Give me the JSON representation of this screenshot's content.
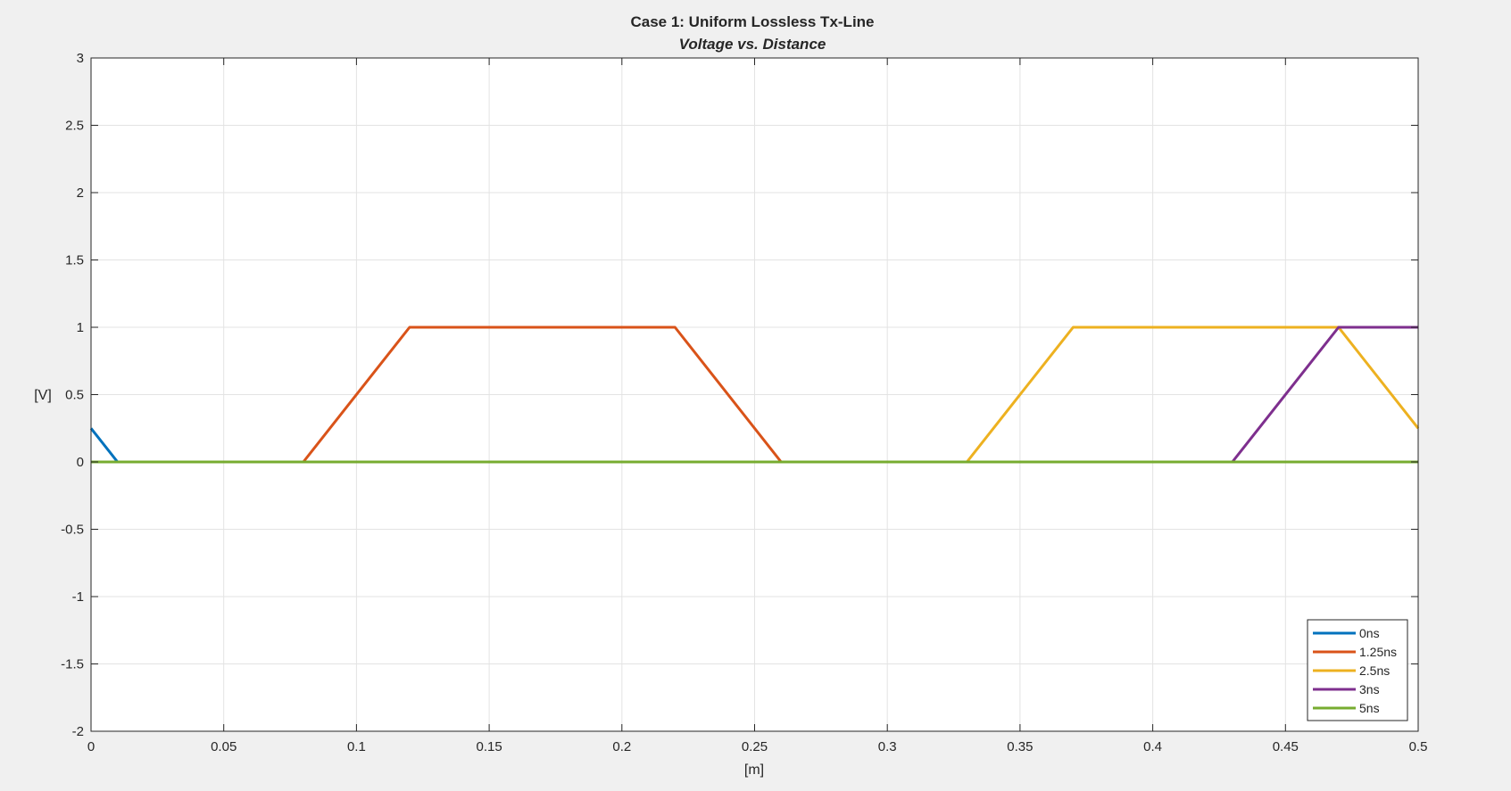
{
  "chart_data": {
    "type": "line",
    "title": "Case 1: Uniform Lossless Tx-Line",
    "subtitle": "Voltage vs. Distance",
    "xlabel": "[m]",
    "ylabel": "[V]",
    "xlim": [
      0,
      0.5
    ],
    "ylim": [
      -2,
      3
    ],
    "xticks": [
      0,
      0.05,
      0.1,
      0.15,
      0.2,
      0.25,
      0.3,
      0.35,
      0.4,
      0.45,
      0.5
    ],
    "xtick_labels": [
      "0",
      "0.05",
      "0.1",
      "0.15",
      "0.2",
      "0.25",
      "0.3",
      "0.35",
      "0.4",
      "0.45",
      "0.5"
    ],
    "yticks": [
      -2,
      -1.5,
      -1,
      -0.5,
      0,
      0.5,
      1,
      1.5,
      2,
      2.5,
      3
    ],
    "ytick_labels": [
      "-2",
      "-1.5",
      "-1",
      "-0.5",
      "0",
      "0.5",
      "1",
      "1.5",
      "2",
      "2.5",
      "3"
    ],
    "grid": true,
    "legend_position": "bottom-right",
    "series": [
      {
        "name": "0ns",
        "color": "#0072BD",
        "x": [
          0,
          0.01,
          0.5
        ],
        "y": [
          0.25,
          0,
          0
        ]
      },
      {
        "name": "1.25ns",
        "color": "#D95319",
        "x": [
          0,
          0.08,
          0.12,
          0.22,
          0.26,
          0.5
        ],
        "y": [
          0,
          0,
          1,
          1,
          0,
          0
        ]
      },
      {
        "name": "2.5ns",
        "color": "#EDB120",
        "x": [
          0,
          0.33,
          0.37,
          0.47,
          0.5
        ],
        "y": [
          0,
          0,
          1,
          1,
          0.25
        ]
      },
      {
        "name": "3ns",
        "color": "#7E2F8E",
        "x": [
          0,
          0.43,
          0.47,
          0.5
        ],
        "y": [
          0,
          0,
          1,
          1
        ]
      },
      {
        "name": "5ns",
        "color": "#77AC30",
        "x": [
          0,
          0.5
        ],
        "y": [
          0,
          0
        ]
      }
    ]
  }
}
